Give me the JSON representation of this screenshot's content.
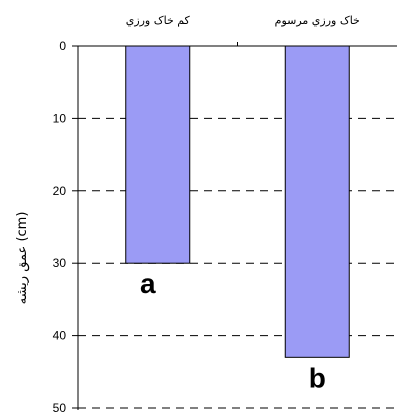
{
  "chart_data": {
    "type": "bar",
    "categories": [
      "کم خاک ورزي",
      "خاک ورزي مرسوم"
    ],
    "values": [
      30,
      43
    ],
    "annotations": [
      "a",
      "b"
    ],
    "ylabel": "عمق ريشه (cm)",
    "ylim": [
      0,
      50
    ],
    "y_inverted": true,
    "y_ticks": [
      "0",
      "10",
      "20",
      "30",
      "40",
      "50"
    ],
    "x_axis_position": "top",
    "grid": "horizontal-dashed",
    "bar_color": "#9b9bf5"
  }
}
